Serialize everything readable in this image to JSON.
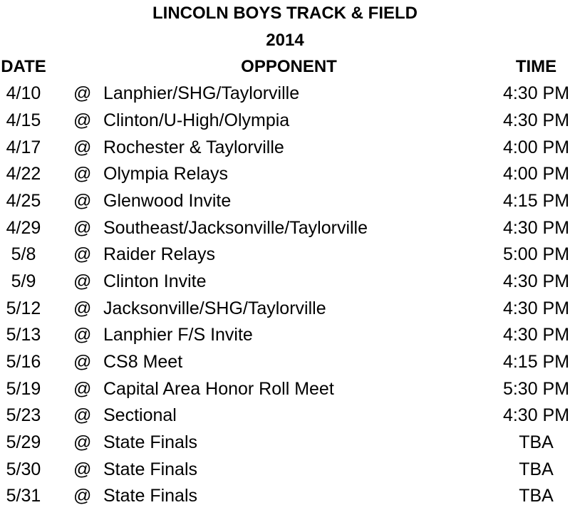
{
  "title": "LINCOLN BOYS TRACK & FIELD",
  "year": "2014",
  "columns": {
    "date": "DATE",
    "opponent": "OPPONENT",
    "time": "TIME"
  },
  "at_symbol": "@",
  "rows": [
    {
      "date": "4/10",
      "opponent": "Lanphier/SHG/Taylorville",
      "time": "4:30 PM"
    },
    {
      "date": "4/15",
      "opponent": "Clinton/U-High/Olympia",
      "time": "4:30 PM"
    },
    {
      "date": "4/17",
      "opponent": "Rochester & Taylorville",
      "time": "4:00 PM"
    },
    {
      "date": "4/22",
      "opponent": "Olympia Relays",
      "time": "4:00 PM"
    },
    {
      "date": "4/25",
      "opponent": "Glenwood Invite",
      "time": "4:15 PM"
    },
    {
      "date": "4/29",
      "opponent": "Southeast/Jacksonville/Taylorville",
      "time": "4:30 PM"
    },
    {
      "date": "5/8",
      "opponent": "Raider Relays",
      "time": "5:00 PM"
    },
    {
      "date": "5/9",
      "opponent": "Clinton Invite",
      "time": "4:30 PM"
    },
    {
      "date": "5/12",
      "opponent": "Jacksonville/SHG/Taylorville",
      "time": "4:30 PM"
    },
    {
      "date": "5/13",
      "opponent": "Lanphier F/S Invite",
      "time": "4:30 PM"
    },
    {
      "date": "5/16",
      "opponent": "CS8 Meet",
      "time": "4:15 PM"
    },
    {
      "date": "5/19",
      "opponent": "Capital Area Honor Roll Meet",
      "time": "5:30 PM"
    },
    {
      "date": "5/23",
      "opponent": "Sectional",
      "time": "4:30 PM"
    },
    {
      "date": "5/29",
      "opponent": "State Finals",
      "time": "TBA"
    },
    {
      "date": "5/30",
      "opponent": "State Finals",
      "time": "TBA"
    },
    {
      "date": "5/31",
      "opponent": "State Finals",
      "time": "TBA"
    }
  ],
  "colors": {
    "text": "#000000",
    "background": "#ffffff"
  }
}
